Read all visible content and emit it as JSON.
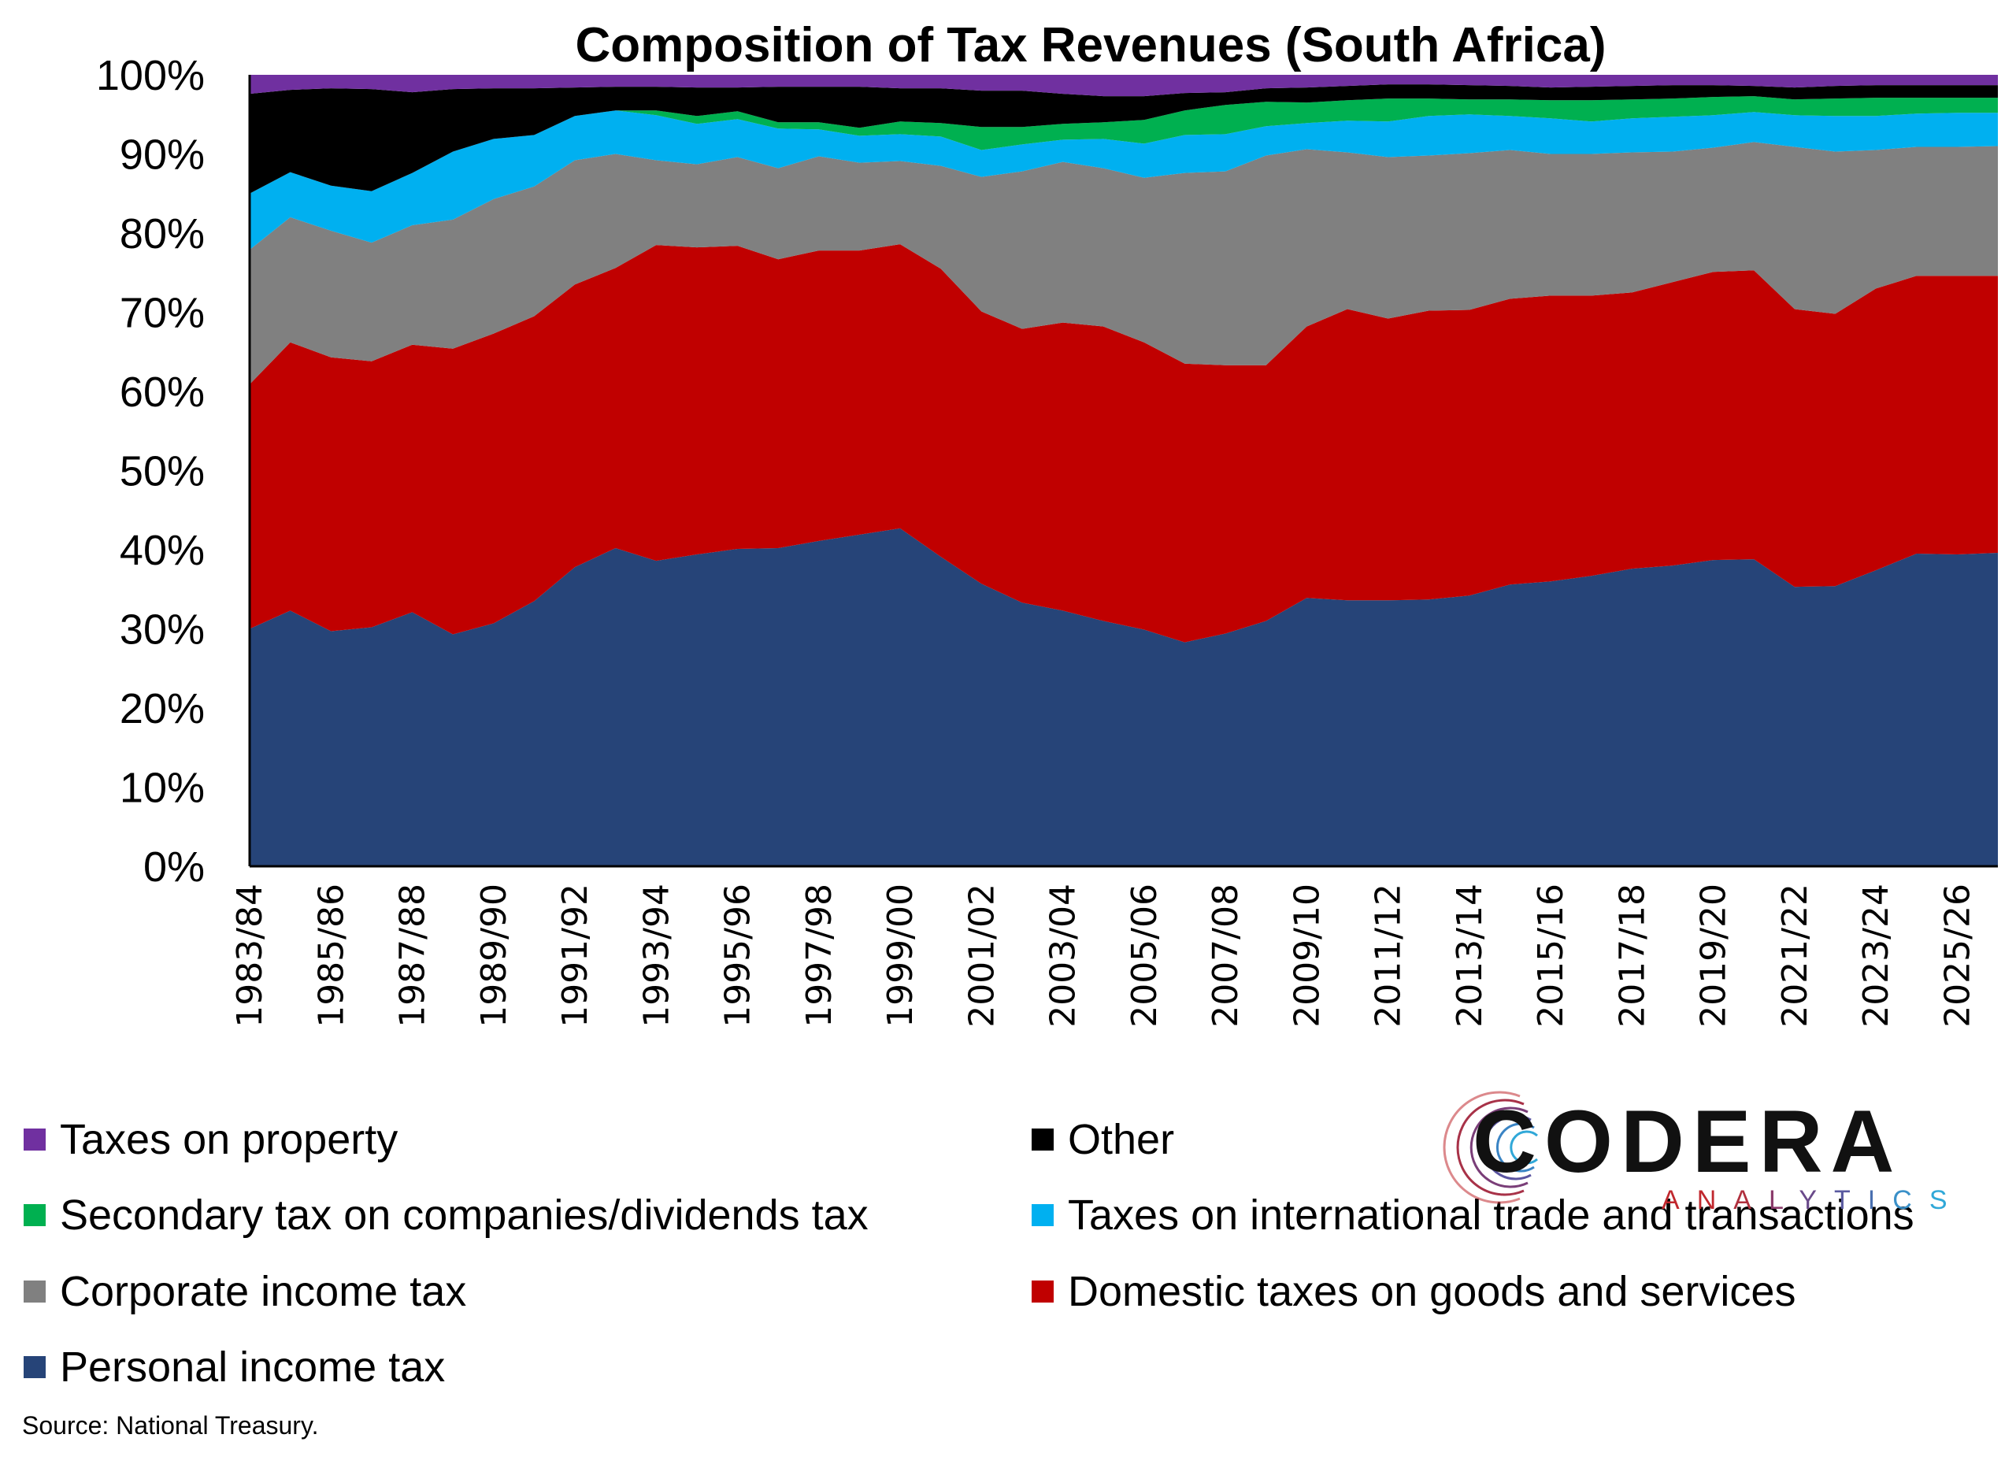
{
  "chart_data": {
    "type": "area",
    "stacked": true,
    "normalized": true,
    "title": "Composition of Tax Revenues (South Africa)",
    "xlabel": "",
    "ylabel": "",
    "ylim": [
      0,
      100
    ],
    "y_ticks": [
      "0%",
      "10%",
      "20%",
      "30%",
      "40%",
      "50%",
      "60%",
      "70%",
      "80%",
      "90%",
      "100%"
    ],
    "x_tick_labels": [
      "1983/84",
      "1985/86",
      "1987/88",
      "1989/90",
      "1991/92",
      "1993/94",
      "1995/96",
      "1997/98",
      "1999/00",
      "2001/02",
      "2003/04",
      "2005/06",
      "2007/08",
      "2009/10",
      "2011/12",
      "2013/14",
      "2015/16",
      "2017/18",
      "2019/20",
      "2021/22",
      "2023/24",
      "2025/26"
    ],
    "x": [
      "1983/84",
      "1984/85",
      "1985/86",
      "1986/87",
      "1987/88",
      "1988/89",
      "1989/90",
      "1990/91",
      "1991/92",
      "1992/93",
      "1993/94",
      "1994/95",
      "1995/96",
      "1996/97",
      "1997/98",
      "1998/99",
      "1999/00",
      "2000/01",
      "2001/02",
      "2002/03",
      "2003/04",
      "2004/05",
      "2005/06",
      "2006/07",
      "2007/08",
      "2008/09",
      "2009/10",
      "2010/11",
      "2011/12",
      "2012/13",
      "2013/14",
      "2014/15",
      "2015/16",
      "2016/17",
      "2017/18",
      "2018/19",
      "2019/20",
      "2020/21",
      "2021/22",
      "2022/23",
      "2023/24",
      "2024/25",
      "2025/26",
      "2026/27"
    ],
    "grid": false,
    "legend_position": "bottom",
    "series": [
      {
        "name": "Personal income tax",
        "color": "#264478",
        "values": [
          30.0,
          32.3,
          29.7,
          30.2,
          32.1,
          29.3,
          30.7,
          33.5,
          37.8,
          40.2,
          38.6,
          39.4,
          40.1,
          40.2,
          41.1,
          41.9,
          42.7,
          39.1,
          35.7,
          33.3,
          32.3,
          31.0,
          29.9,
          28.3,
          29.4,
          31.0,
          33.9,
          33.6,
          33.6,
          33.7,
          34.2,
          35.6,
          36.0,
          36.7,
          37.6,
          38.0,
          38.7,
          38.8,
          35.3,
          35.4,
          37.4,
          39.5,
          39.4,
          39.6
        ]
      },
      {
        "name": "Domestic taxes on goods and services",
        "color": "#C00000",
        "values": [
          30.9,
          33.9,
          34.6,
          33.6,
          33.8,
          36.1,
          36.6,
          36.0,
          35.7,
          35.4,
          39.9,
          38.8,
          38.3,
          36.5,
          36.7,
          35.9,
          35.9,
          36.4,
          34.4,
          34.6,
          36.4,
          37.2,
          36.3,
          35.2,
          33.9,
          32.3,
          34.3,
          36.8,
          35.6,
          36.5,
          36.1,
          36.1,
          36.1,
          35.4,
          34.9,
          35.8,
          36.4,
          36.5,
          35.1,
          34.4,
          35.6,
          35.1,
          35.2,
          35.0
        ]
      },
      {
        "name": "Corporate income tax",
        "color": "#808080",
        "values": [
          17.0,
          15.8,
          16.0,
          15.0,
          15.1,
          16.3,
          17.0,
          16.4,
          15.7,
          14.4,
          10.7,
          10.5,
          11.2,
          11.5,
          11.9,
          11.1,
          10.5,
          13.0,
          17.0,
          19.9,
          20.3,
          20.0,
          20.8,
          24.1,
          24.5,
          26.5,
          22.4,
          19.8,
          20.4,
          19.6,
          19.8,
          18.8,
          17.9,
          17.9,
          17.7,
          16.5,
          15.7,
          16.2,
          20.5,
          20.5,
          17.5,
          16.3,
          16.3,
          16.4
        ]
      },
      {
        "name": "Taxes on international trade and transactions",
        "color": "#00B0F0",
        "values": [
          7.1,
          5.7,
          5.7,
          6.5,
          6.6,
          8.6,
          7.6,
          6.5,
          5.6,
          5.5,
          5.7,
          5.1,
          4.8,
          5.0,
          3.4,
          3.4,
          3.4,
          3.7,
          3.4,
          3.4,
          2.8,
          3.7,
          4.3,
          4.8,
          4.7,
          3.7,
          3.3,
          4.0,
          4.5,
          5.0,
          4.9,
          4.3,
          4.5,
          4.1,
          4.3,
          4.4,
          4.1,
          3.8,
          4.0,
          4.5,
          4.3,
          4.2,
          4.3,
          4.2
        ]
      },
      {
        "name": "Secondary tax on companies/dividends tax",
        "color": "#00B050",
        "values": [
          0.0,
          0.0,
          0.0,
          0.0,
          0.0,
          0.0,
          0.0,
          0.0,
          0.0,
          0.0,
          0.6,
          1.0,
          1.0,
          0.8,
          0.9,
          1.0,
          1.6,
          1.7,
          2.9,
          2.2,
          2.0,
          2.1,
          3.0,
          3.1,
          3.7,
          3.1,
          2.6,
          2.6,
          2.9,
          2.2,
          1.9,
          2.1,
          2.3,
          2.7,
          2.4,
          2.3,
          2.3,
          2.0,
          2.0,
          2.2,
          2.3,
          2.0,
          1.9,
          1.9
        ]
      },
      {
        "name": "Other",
        "color": "#000000",
        "values": [
          12.6,
          10.4,
          12.3,
          12.9,
          10.2,
          7.9,
          6.4,
          5.9,
          3.6,
          3.0,
          3.0,
          3.6,
          3.0,
          4.5,
          4.5,
          5.2,
          4.2,
          4.4,
          4.6,
          4.6,
          3.8,
          3.3,
          3.0,
          2.2,
          1.6,
          1.7,
          1.9,
          1.8,
          1.8,
          1.8,
          1.8,
          1.7,
          1.6,
          1.7,
          1.7,
          1.7,
          1.5,
          1.3,
          1.5,
          1.6,
          1.6,
          1.6,
          1.6,
          1.6
        ]
      },
      {
        "name": "Taxes on property",
        "color": "#7030A0",
        "values": [
          2.4,
          1.9,
          1.7,
          1.8,
          2.2,
          1.8,
          1.7,
          1.7,
          1.6,
          1.5,
          1.5,
          1.6,
          1.6,
          1.5,
          1.5,
          1.5,
          1.7,
          1.7,
          2.0,
          2.0,
          2.4,
          2.7,
          2.7,
          2.3,
          2.2,
          1.7,
          1.6,
          1.4,
          1.2,
          1.2,
          1.3,
          1.4,
          1.6,
          1.5,
          1.4,
          1.3,
          1.3,
          1.4,
          1.6,
          1.4,
          1.3,
          1.3,
          1.3,
          1.3
        ]
      }
    ],
    "annotations": [
      "Source: National Treasury."
    ]
  },
  "legend": {
    "items": [
      {
        "label": "Taxes on property",
        "color": "#7030A0"
      },
      {
        "label": "Other",
        "color": "#000000"
      },
      {
        "label": "Secondary tax on companies/dividends tax",
        "color": "#00B050"
      },
      {
        "label": "Taxes on international trade and transactions",
        "color": "#00B0F0"
      },
      {
        "label": "Corporate income tax",
        "color": "#808080"
      },
      {
        "label": "Domestic taxes on goods and services",
        "color": "#C00000"
      },
      {
        "label": "Personal income tax",
        "color": "#264478"
      }
    ]
  },
  "source": "Source: National Treasury.",
  "logo": {
    "wordmark": "CODERA",
    "subtitle_letters": [
      "A",
      "N",
      "A",
      "L",
      "Y",
      "T",
      "I",
      "C",
      "S"
    ],
    "subtitle_colors": [
      "#C0282E",
      "#C0282E",
      "#B0303E",
      "#8A3A6A",
      "#6A4A8A",
      "#5A5AA0",
      "#4A70B0",
      "#3A90C8",
      "#30A8D8"
    ]
  }
}
